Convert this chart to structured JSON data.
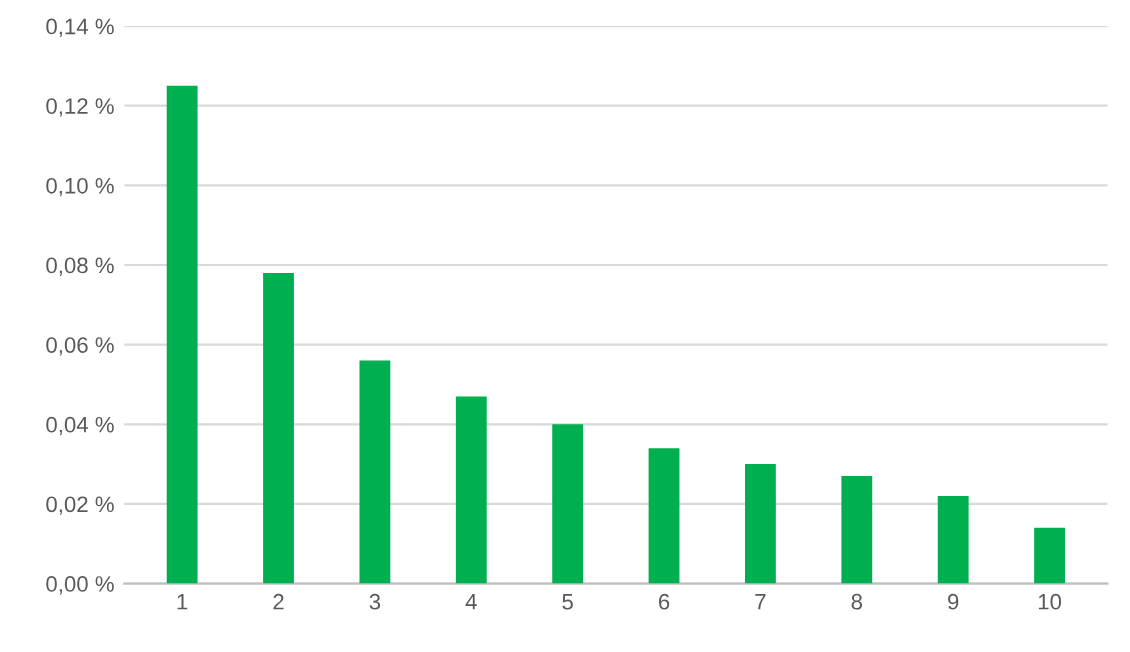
{
  "chart_data": {
    "type": "bar",
    "categories": [
      "1",
      "2",
      "3",
      "4",
      "5",
      "6",
      "7",
      "8",
      "9",
      "10"
    ],
    "values": [
      0.125,
      0.078,
      0.056,
      0.047,
      0.04,
      0.034,
      0.03,
      0.027,
      0.022,
      0.014
    ],
    "color": "#00b050",
    "ylim": [
      0,
      0.14
    ],
    "yticks": [
      {
        "value": 0,
        "label": "0,00 %"
      },
      {
        "value": 0.02,
        "label": "0,02 %"
      },
      {
        "value": 0.04,
        "label": "0,04 %"
      },
      {
        "value": 0.06,
        "label": "0,06 %"
      },
      {
        "value": 0.08,
        "label": "0,08 %"
      },
      {
        "value": 0.1,
        "label": "0,10 %"
      },
      {
        "value": 0.12,
        "label": "0,12 %"
      },
      {
        "value": 0.14,
        "label": "0,14 %"
      }
    ],
    "grid": "y"
  }
}
